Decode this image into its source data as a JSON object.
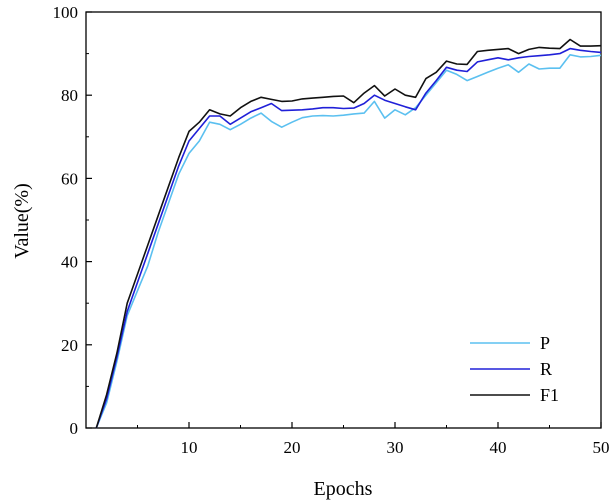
{
  "chart_data": {
    "type": "line",
    "xlabel": "Epochs",
    "ylabel": "Value(%)",
    "xlim": [
      0,
      50
    ],
    "ylim": [
      0,
      100
    ],
    "xticks": [
      10,
      20,
      30,
      40,
      50
    ],
    "yticks": [
      0,
      20,
      40,
      60,
      80,
      100
    ],
    "grid": false,
    "legend_position": "bottom-right",
    "x": [
      1,
      2,
      3,
      4,
      5,
      6,
      7,
      8,
      9,
      10,
      11,
      12,
      13,
      14,
      15,
      16,
      17,
      18,
      19,
      20,
      21,
      22,
      23,
      24,
      25,
      26,
      27,
      28,
      29,
      30,
      31,
      32,
      33,
      34,
      35,
      36,
      37,
      38,
      39,
      40,
      41,
      42,
      43,
      44,
      45,
      46,
      47,
      48,
      49,
      50
    ],
    "series": [
      {
        "name": "P",
        "color": "#5bc0f0",
        "values": [
          0,
          6,
          16,
          27,
          33,
          39,
          47,
          54,
          61,
          66,
          69,
          73.5,
          73,
          71.7,
          73,
          74.5,
          75.7,
          73.7,
          72.3,
          73.5,
          74.6,
          75,
          75.1,
          75,
          75.2,
          75.5,
          75.7,
          78.5,
          74.5,
          76.5,
          75.3,
          77,
          80,
          83,
          86,
          85,
          83.5,
          84.5,
          85.5,
          86.5,
          87.3,
          85.5,
          87.5,
          86.3,
          86.5,
          86.5,
          89.7,
          89.2,
          89.3,
          89.6
        ]
      },
      {
        "name": "R",
        "color": "#2020d8",
        "values": [
          0,
          7,
          17,
          28,
          35,
          42,
          49,
          56,
          63,
          69,
          72,
          75,
          75,
          73,
          74.5,
          76,
          77,
          78,
          76.3,
          76.4,
          76.5,
          76.7,
          77,
          77,
          76.8,
          76.9,
          78,
          80,
          78.8,
          78,
          77.2,
          76.5,
          80.5,
          83.5,
          86.7,
          86,
          85.7,
          88,
          88.5,
          89,
          88.5,
          89,
          89.3,
          89.5,
          89.7,
          90,
          91.2,
          90.8,
          90.5,
          90.3
        ]
      },
      {
        "name": "F1",
        "color": "#111111",
        "values": [
          0,
          8,
          18,
          30,
          37,
          44,
          51,
          58,
          65,
          71.3,
          73.5,
          76.5,
          75.5,
          75,
          77,
          78.5,
          79.5,
          79,
          78.5,
          78.6,
          79.1,
          79.3,
          79.5,
          79.7,
          79.8,
          78.2,
          80.5,
          82.3,
          79.8,
          81.5,
          80,
          79.5,
          84,
          85.5,
          88.2,
          87.5,
          87.4,
          90.5,
          90.8,
          91,
          91.2,
          90,
          91,
          91.5,
          91.3,
          91.2,
          93.4,
          91.8,
          91.8,
          91.9
        ]
      }
    ]
  }
}
